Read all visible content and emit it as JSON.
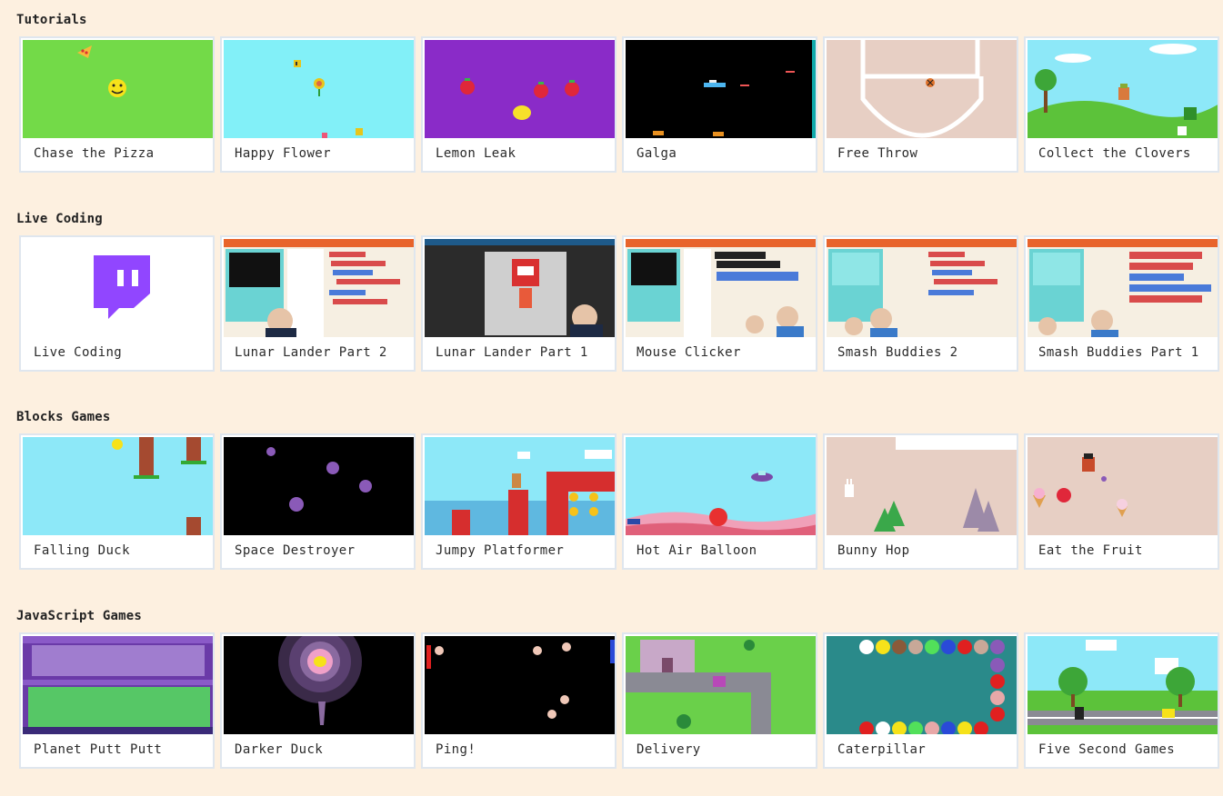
{
  "sections": [
    {
      "title": "Tutorials",
      "cards": [
        {
          "label": "Chase the Pizza",
          "thumb": "chase-the-pizza"
        },
        {
          "label": "Happy Flower",
          "thumb": "happy-flower"
        },
        {
          "label": "Lemon Leak",
          "thumb": "lemon-leak"
        },
        {
          "label": "Galga",
          "thumb": "galga"
        },
        {
          "label": "Free Throw",
          "thumb": "free-throw"
        },
        {
          "label": "Collect the Clovers",
          "thumb": "collect-the-clovers"
        }
      ]
    },
    {
      "title": "Live Coding",
      "cards": [
        {
          "label": "Live Coding",
          "thumb": "twitch-logo"
        },
        {
          "label": "Lunar Lander Part 2",
          "thumb": "editor-stream"
        },
        {
          "label": "Lunar Lander Part 1",
          "thumb": "paint-stream"
        },
        {
          "label": "Mouse Clicker",
          "thumb": "editor-stream"
        },
        {
          "label": "Smash Buddies 2",
          "thumb": "editor-stream"
        },
        {
          "label": "Smash Buddies Part 1",
          "thumb": "editor-stream"
        }
      ]
    },
    {
      "title": "Blocks Games",
      "cards": [
        {
          "label": "Falling Duck",
          "thumb": "falling-duck"
        },
        {
          "label": "Space Destroyer",
          "thumb": "space-destroyer"
        },
        {
          "label": "Jumpy Platformer",
          "thumb": "jumpy-platformer"
        },
        {
          "label": "Hot Air Balloon",
          "thumb": "hot-air-balloon"
        },
        {
          "label": "Bunny Hop",
          "thumb": "bunny-hop"
        },
        {
          "label": "Eat the Fruit",
          "thumb": "eat-the-fruit"
        }
      ]
    },
    {
      "title": "JavaScript Games",
      "cards": [
        {
          "label": "Planet Putt Putt",
          "thumb": "planet-putt-putt"
        },
        {
          "label": "Darker Duck",
          "thumb": "darker-duck"
        },
        {
          "label": "Ping!",
          "thumb": "ping"
        },
        {
          "label": "Delivery",
          "thumb": "delivery"
        },
        {
          "label": "Caterpillar",
          "thumb": "caterpillar"
        },
        {
          "label": "Five Second Games",
          "thumb": "five-second-games"
        }
      ]
    }
  ],
  "colors": {
    "page_background": "#fdf0e0",
    "card_border": "#dfe6ee",
    "card_background": "#ffffff",
    "twitch_purple": "#9146ff"
  }
}
